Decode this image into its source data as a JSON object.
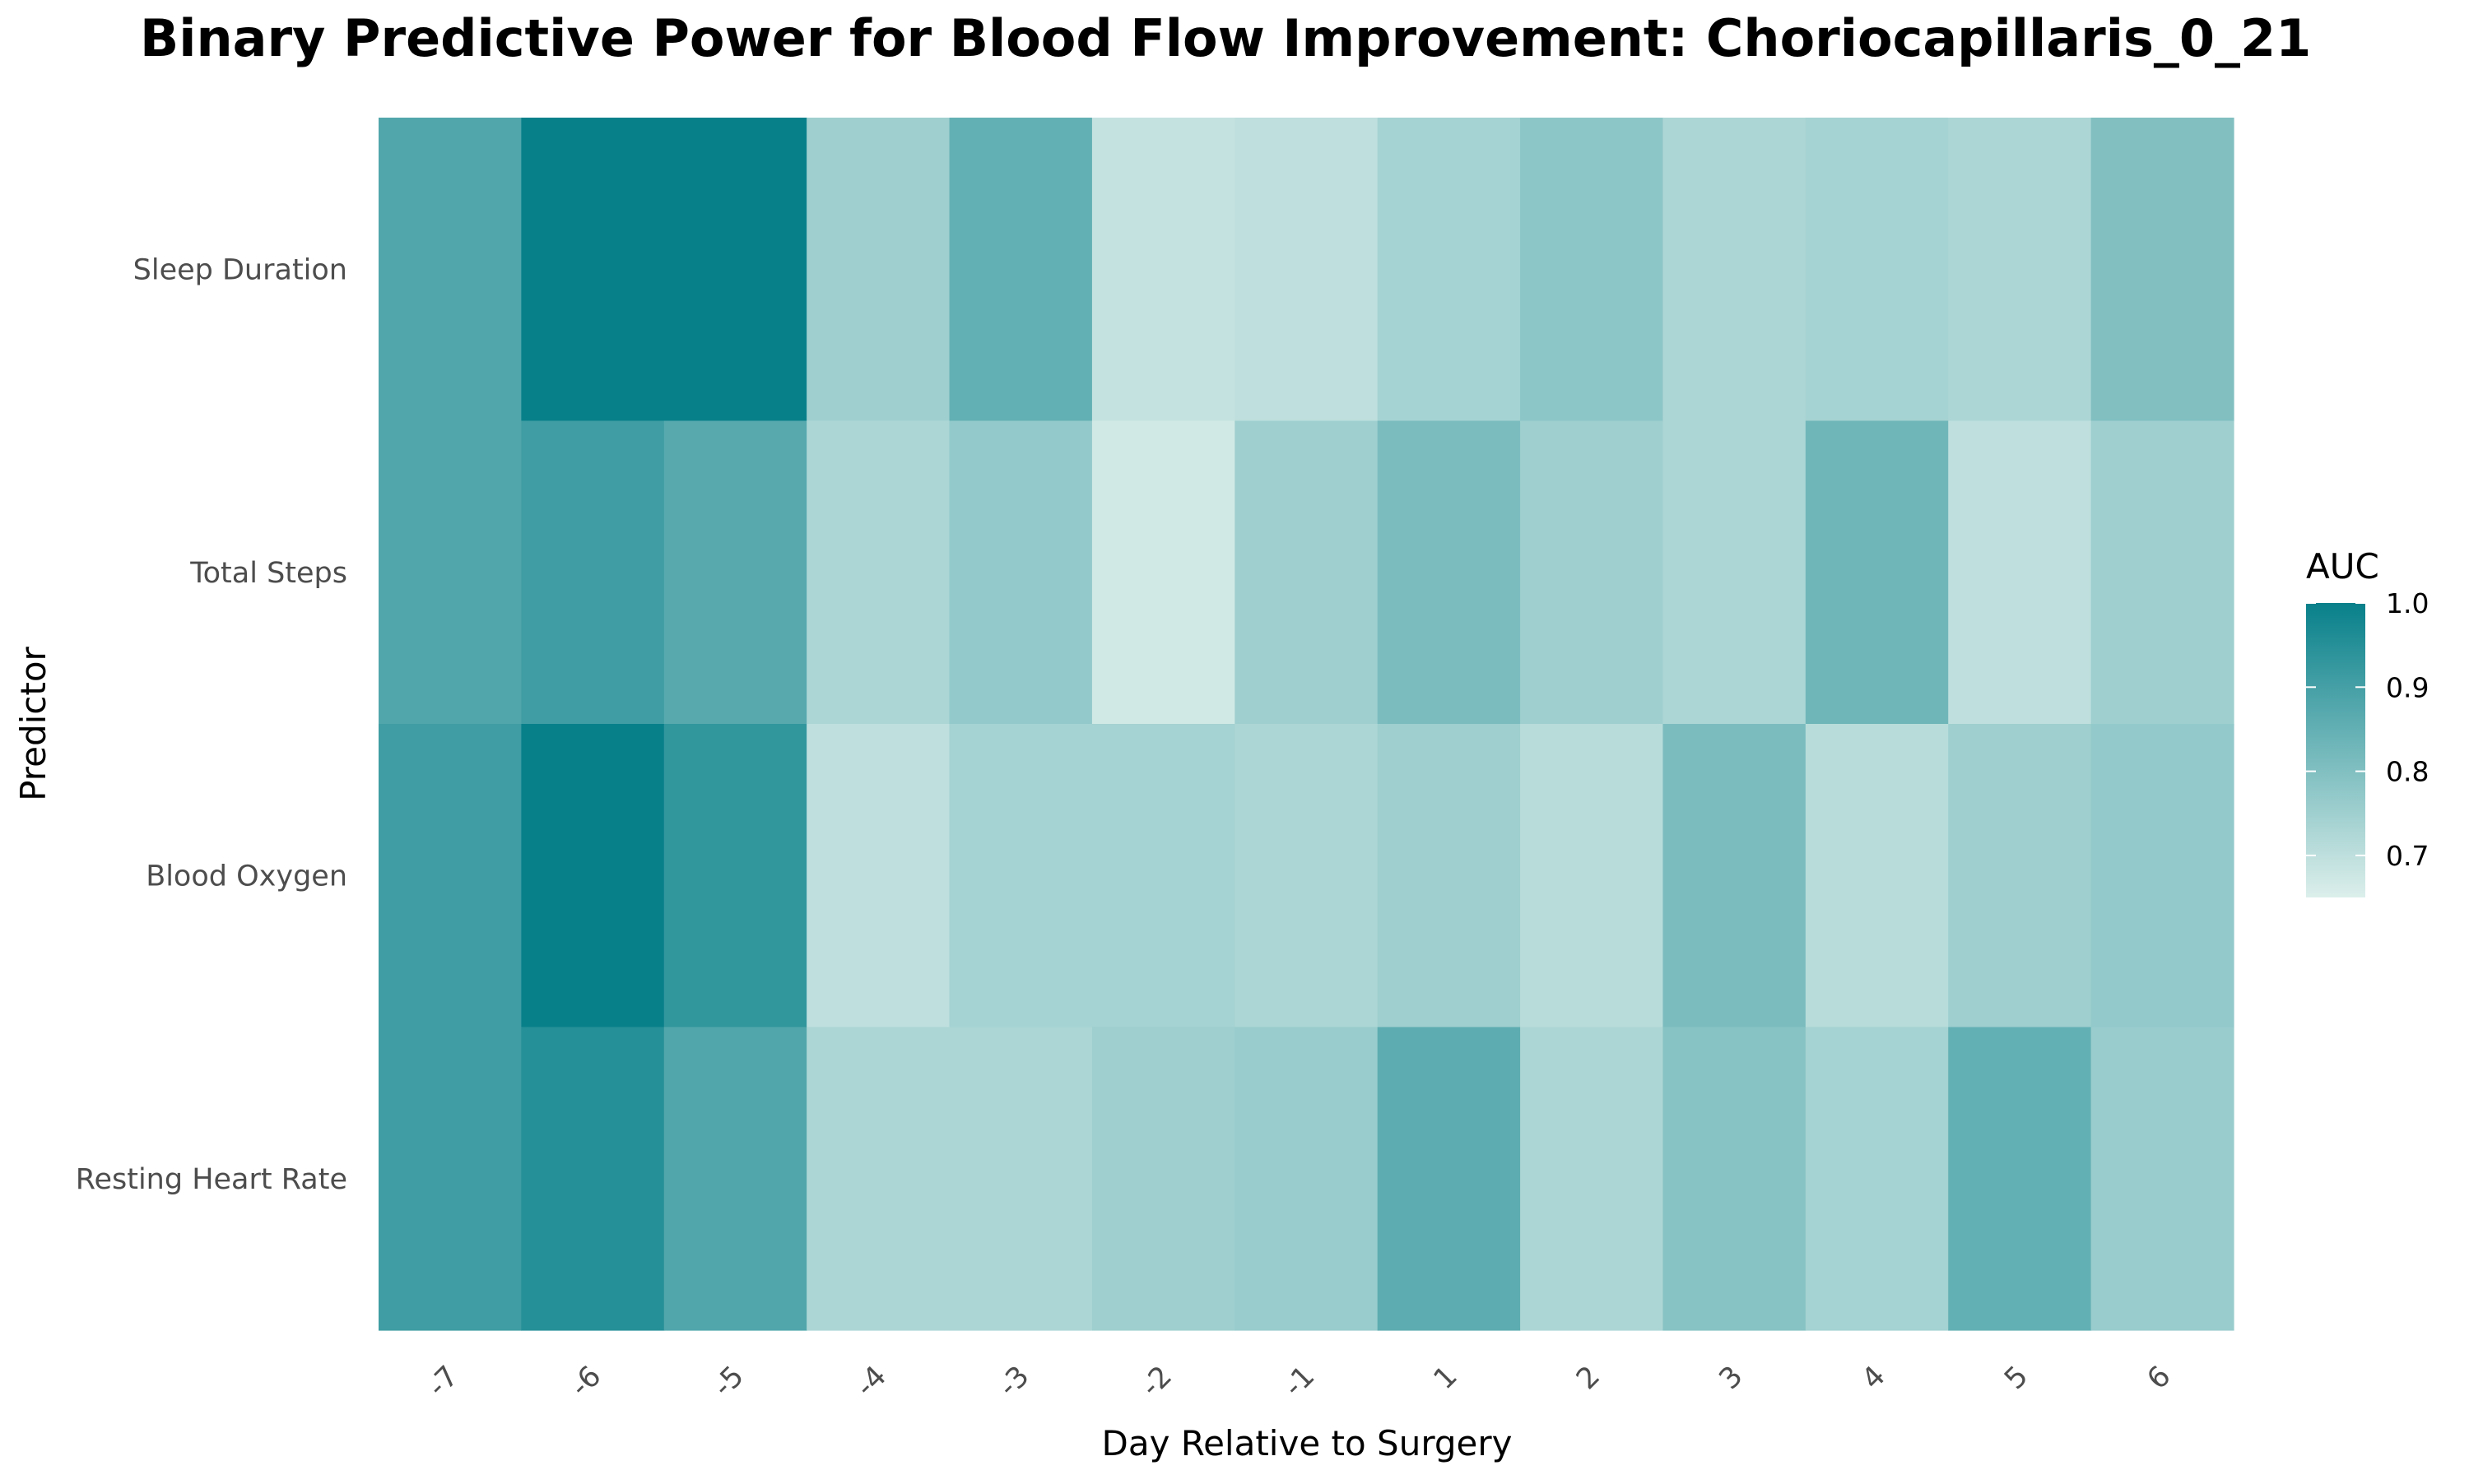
{
  "chart_data": {
    "type": "heatmap",
    "title": "Binary Predictive Power for Blood Flow Improvement: Choriocapillaris_0_21",
    "xlabel": "Day Relative to Surgery",
    "ylabel": "Predictor",
    "x": [
      "-7",
      "-6",
      "-5",
      "-4",
      "-3",
      "-2",
      "-1",
      "1",
      "2",
      "3",
      "4",
      "5",
      "6"
    ],
    "y": [
      "Sleep Duration",
      "Total Steps",
      "Blood Oxygen",
      "Resting Heart Rate"
    ],
    "values": [
      [
        0.88,
        1.0,
        1.0,
        0.75,
        0.85,
        0.69,
        0.7,
        0.74,
        0.78,
        0.73,
        0.74,
        0.73,
        0.8
      ],
      [
        0.88,
        0.91,
        0.87,
        0.73,
        0.77,
        0.67,
        0.75,
        0.81,
        0.75,
        0.73,
        0.83,
        0.7,
        0.75
      ],
      [
        0.91,
        1.0,
        0.93,
        0.7,
        0.74,
        0.74,
        0.73,
        0.75,
        0.71,
        0.81,
        0.71,
        0.75,
        0.77
      ],
      [
        0.91,
        0.95,
        0.88,
        0.73,
        0.73,
        0.75,
        0.76,
        0.86,
        0.73,
        0.79,
        0.74,
        0.85,
        0.76
      ]
    ],
    "legend": {
      "title": "AUC",
      "ticks": [
        "1.0",
        "0.9",
        "0.8",
        "0.7"
      ],
      "tick_values": [
        1.0,
        0.9,
        0.8,
        0.7
      ],
      "range": [
        0.65,
        1.0
      ],
      "placement": "right"
    },
    "color_low": "#dcefeb",
    "color_high": "#08808a",
    "grid": false
  }
}
